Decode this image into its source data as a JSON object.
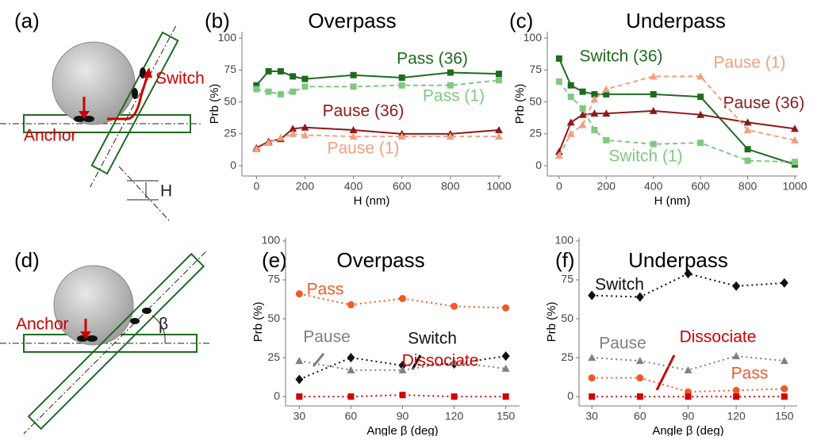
{
  "chart_data": [
    {
      "type": "line",
      "panel_label": "(b)",
      "title": "Overpass",
      "x_label": "H (nm)",
      "y_label": "Prb (%)",
      "x": [
        0,
        50,
        100,
        150,
        200,
        400,
        600,
        800,
        1000
      ],
      "xlim": [
        -60,
        1010
      ],
      "xticks": [
        0,
        200,
        400,
        600,
        800,
        1000
      ],
      "ylim": [
        -8,
        105
      ],
      "yticks": [
        0,
        25,
        50,
        75,
        100
      ],
      "series": [
        {
          "name": "Pass (36)",
          "color": "#1e6b1e",
          "line_style": "solid",
          "marker": "square",
          "values": [
            63,
            74,
            74,
            70,
            68,
            71,
            69,
            73,
            72
          ]
        },
        {
          "name": "Pass (1)",
          "color": "#80c880",
          "line_style": "dashed",
          "marker": "square",
          "values": [
            60,
            58,
            56,
            58,
            62,
            62,
            63,
            63,
            67
          ]
        },
        {
          "name": "Pause (36)",
          "color": "#8b1a1a",
          "line_style": "solid",
          "marker": "triangle",
          "values": [
            14,
            19,
            21,
            29,
            30,
            28,
            25,
            25,
            28
          ]
        },
        {
          "name": "Pause (1)",
          "color": "#f0a080",
          "line_style": "dashed",
          "marker": "triangle",
          "values": [
            13,
            18,
            22,
            25,
            24,
            23,
            23,
            23,
            23
          ]
        }
      ]
    },
    {
      "type": "line",
      "panel_label": "(c)",
      "title": "Underpass",
      "x_label": "H (nm)",
      "y_label": "Prb (%)",
      "x": [
        0,
        50,
        100,
        150,
        200,
        400,
        600,
        800,
        1000
      ],
      "xlim": [
        -50,
        1010
      ],
      "xticks": [
        0,
        200,
        400,
        600,
        800,
        1000
      ],
      "ylim": [
        -8,
        105
      ],
      "yticks": [
        0,
        25,
        50,
        75,
        100
      ],
      "series": [
        {
          "name": "Switch (36)",
          "color": "#1e6b1e",
          "line_style": "solid",
          "marker": "square",
          "values": [
            84,
            63,
            58,
            56,
            56,
            56,
            54,
            13,
            1
          ]
        },
        {
          "name": "Switch (1)",
          "color": "#80c880",
          "line_style": "dashed",
          "marker": "square",
          "values": [
            66,
            54,
            45,
            28,
            20,
            17,
            18,
            4,
            3
          ]
        },
        {
          "name": "Pause (36)",
          "color": "#8b1a1a",
          "line_style": "solid",
          "marker": "triangle",
          "values": [
            11,
            34,
            40,
            41,
            41,
            43,
            40,
            34,
            29
          ]
        },
        {
          "name": "Pause (1)",
          "color": "#f0a080",
          "line_style": "dashed",
          "marker": "triangle",
          "values": [
            8,
            25,
            32,
            52,
            60,
            70,
            70,
            28,
            20
          ]
        }
      ]
    },
    {
      "type": "line",
      "panel_label": "(e)",
      "title": "Overpass",
      "x_label": "Angle β (deg)",
      "y_label": "Prb (%)",
      "x": [
        30,
        60,
        90,
        120,
        150
      ],
      "xlim": [
        22,
        158
      ],
      "xticks": [
        30,
        60,
        90,
        120,
        150
      ],
      "ylim": [
        -6,
        102
      ],
      "yticks": [
        0,
        25,
        50,
        75,
        100
      ],
      "series": [
        {
          "name": "Pass",
          "color": "#f05a28",
          "line_style": "dotted",
          "marker": "circle",
          "values": [
            66,
            59,
            63,
            58,
            57
          ]
        },
        {
          "name": "Switch",
          "color": "#111111",
          "line_style": "dotted",
          "marker": "diamond",
          "values": [
            11,
            25,
            20,
            21,
            26
          ]
        },
        {
          "name": "Pause",
          "color": "#808080",
          "line_style": "dotted",
          "marker": "triangle",
          "values": [
            23,
            17,
            17,
            22,
            18
          ]
        },
        {
          "name": "Dissociate",
          "color": "#d00000",
          "line_style": "dotted",
          "marker": "square",
          "values": [
            0,
            0,
            1,
            0,
            0
          ]
        }
      ]
    },
    {
      "type": "line",
      "panel_label": "(f)",
      "title": "Underpass",
      "x_label": "Angle β (deg)",
      "y_label": "Prb (%)",
      "x": [
        30,
        60,
        90,
        120,
        150
      ],
      "xlim": [
        22,
        158
      ],
      "xticks": [
        30,
        60,
        90,
        120,
        150
      ],
      "ylim": [
        -6,
        102
      ],
      "yticks": [
        0,
        25,
        50,
        75,
        100
      ],
      "series": [
        {
          "name": "Switch",
          "color": "#111111",
          "line_style": "dotted",
          "marker": "diamond",
          "values": [
            65,
            64,
            79,
            71,
            73
          ]
        },
        {
          "name": "Pause",
          "color": "#808080",
          "line_style": "dotted",
          "marker": "triangle",
          "values": [
            25,
            23,
            17,
            26,
            23
          ]
        },
        {
          "name": "Pass",
          "color": "#f05a28",
          "line_style": "dotted",
          "marker": "circle",
          "values": [
            12,
            12,
            3,
            4,
            5
          ]
        },
        {
          "name": "Dissociate",
          "color": "#d00000",
          "line_style": "dotted",
          "marker": "square",
          "values": [
            0,
            0,
            0,
            0,
            0
          ]
        }
      ]
    }
  ],
  "diagrams": {
    "a": {
      "label": "(a)",
      "anchor": "Anchor",
      "switch": "Switch",
      "height": "H"
    },
    "d": {
      "label": "(d)",
      "anchor": "Anchor",
      "angle": "β"
    }
  }
}
